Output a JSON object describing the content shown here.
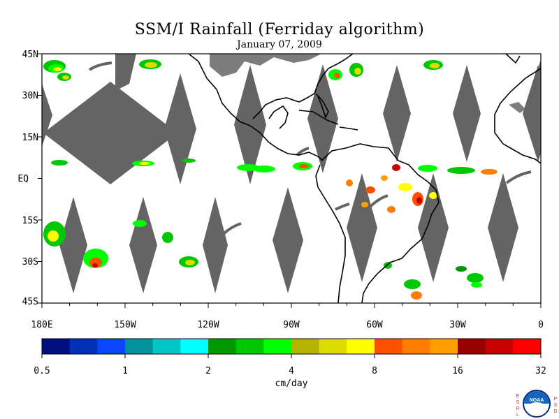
{
  "title": "SSM/I Rainfall (Ferriday algorithm)",
  "subtitle": "January 07, 2009",
  "map": {
    "lat_labels": [
      "45N",
      "30N",
      "15N",
      "EQ",
      "15S",
      "30S",
      "45S"
    ],
    "lon_labels": [
      "180E",
      "150W",
      "120W",
      "90W",
      "60W",
      "30W",
      "0"
    ],
    "lat_range": [
      -45,
      45
    ],
    "lon_range": [
      -180,
      0
    ],
    "missing_color": "#646464",
    "coast_color": "#000000",
    "land_grey_color": "#7d7d7d"
  },
  "colorbar": {
    "tick_labels": [
      "0.5",
      "1",
      "2",
      "4",
      "8",
      "16",
      "32"
    ],
    "unit": "cm/day",
    "colors": [
      "#000f7d",
      "#0030b4",
      "#0a46ff",
      "#00919b",
      "#00c8c8",
      "#00ffff",
      "#009600",
      "#00c800",
      "#00ff00",
      "#b4b400",
      "#dcdc00",
      "#ffff00",
      "#ff5000",
      "#ff7d00",
      "#ffa000",
      "#960000",
      "#c80000",
      "#ff0000"
    ]
  },
  "logo": {
    "left_letters": [
      "E",
      "S",
      "R",
      "L"
    ],
    "right_letters": [
      "P",
      "S",
      "D"
    ],
    "text": "NOAA"
  }
}
